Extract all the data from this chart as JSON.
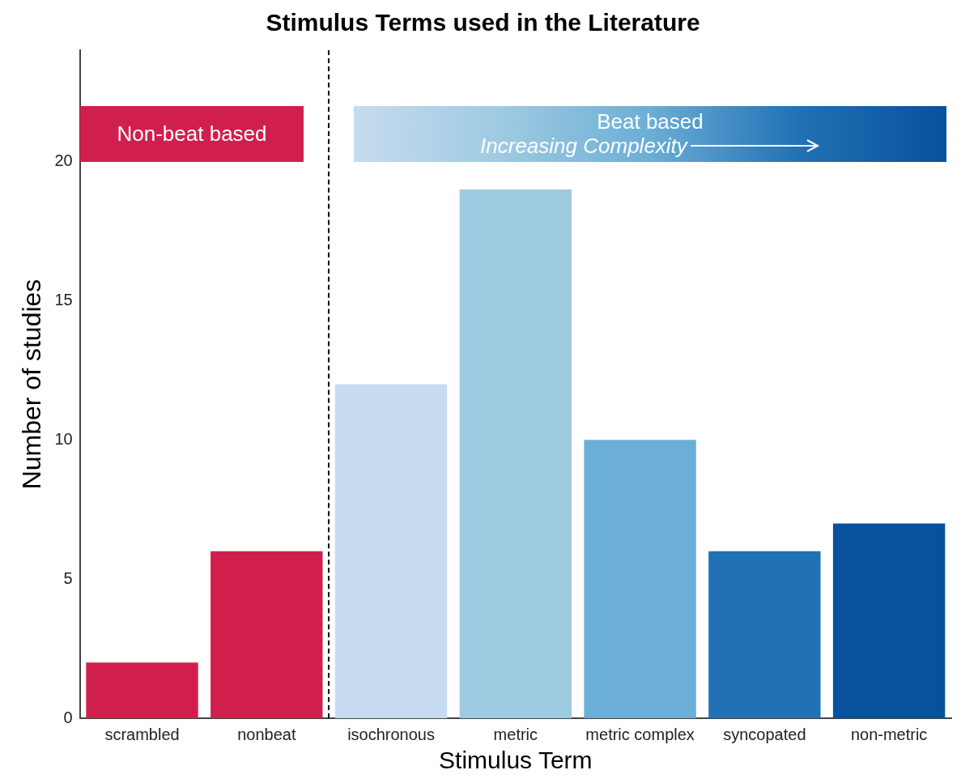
{
  "chart_data": {
    "type": "bar",
    "title": "Stimulus Terms used in the Literature",
    "xlabel": "Stimulus Term",
    "ylabel": "Number of studies",
    "categories": [
      "scrambled",
      "nonbeat",
      "isochronous",
      "metric",
      "metric complex",
      "syncopated",
      "non-metric"
    ],
    "values": [
      2,
      6,
      12,
      19,
      10,
      6,
      7
    ],
    "colors": [
      "#d11f4d",
      "#d11f4d",
      "#c6dbef",
      "#9ecae1",
      "#6baed6",
      "#2171b5",
      "#08519c"
    ],
    "ylim": [
      0,
      24
    ],
    "yticks": [
      0,
      5,
      10,
      15,
      20
    ],
    "grid": false,
    "legend": false,
    "annotations": [
      "Non-beat based",
      "Beat based",
      "Increasing Complexity"
    ]
  }
}
